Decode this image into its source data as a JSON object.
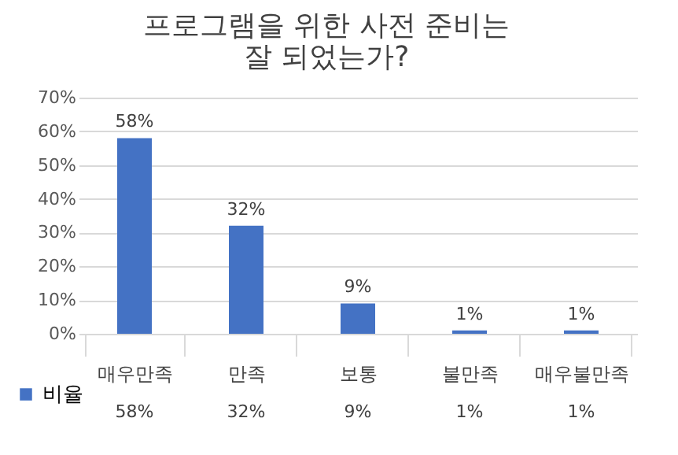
{
  "chart_data": {
    "type": "bar",
    "title": "프로그램을 위한 사전 준비는\n잘 되었는가?",
    "categories": [
      "매우만족",
      "만족",
      "보통",
      "불만족",
      "매우불만족"
    ],
    "series": [
      {
        "name": "비율",
        "color": "#4472c4",
        "values": [
          58,
          32,
          9,
          1,
          1
        ],
        "value_labels": [
          "58%",
          "32%",
          "9%",
          "1%",
          "1%"
        ]
      }
    ],
    "ylim": [
      0,
      70
    ],
    "yticks": [
      {
        "value": 0,
        "label": "0%"
      },
      {
        "value": 10,
        "label": "10%"
      },
      {
        "value": 20,
        "label": "20%"
      },
      {
        "value": 30,
        "label": "30%"
      },
      {
        "value": 40,
        "label": "40%"
      },
      {
        "value": 50,
        "label": "50%"
      },
      {
        "value": 60,
        "label": "60%"
      },
      {
        "value": 70,
        "label": "70%"
      }
    ],
    "grid": "y",
    "legend": "bottom"
  }
}
